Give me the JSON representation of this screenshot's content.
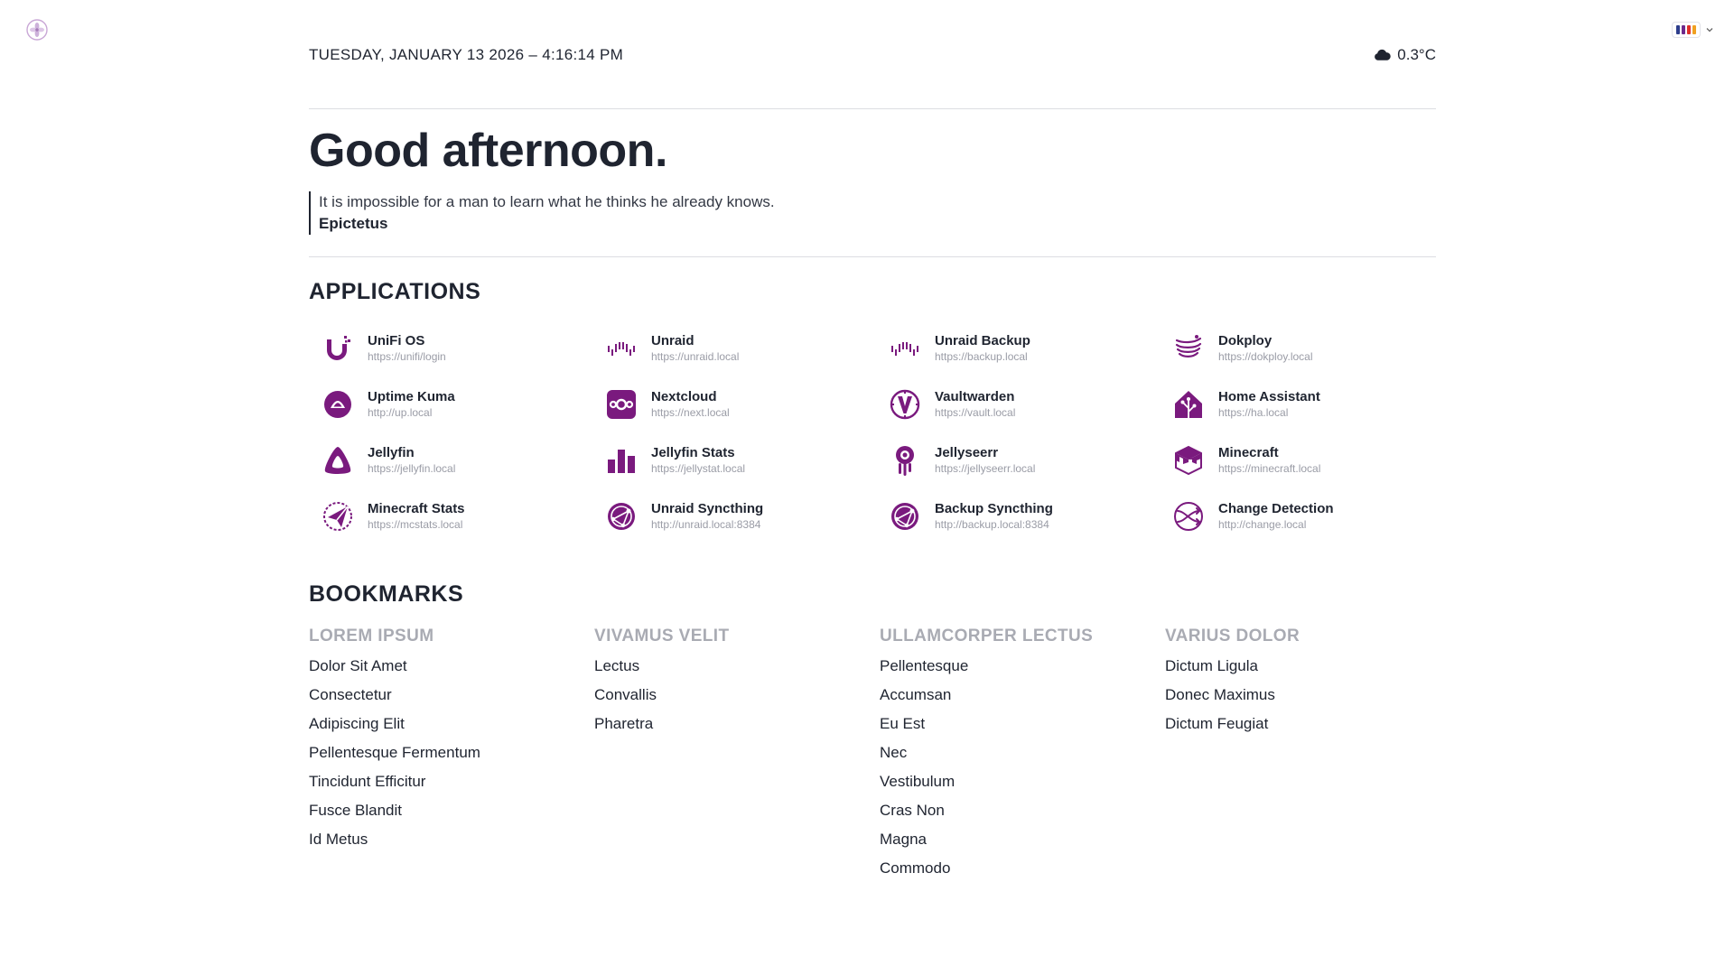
{
  "header": {
    "datetime": "TUESDAY, JANUARY 13 2026 – 4:16:14 PM",
    "weather_icon": "cloud-icon",
    "temperature": "0.3°C"
  },
  "theme": {
    "logo_icon": "flower-logo-icon",
    "swatch_colors": [
      "#2d3e8c",
      "#6e2a8c",
      "#e0302a",
      "#f0a020"
    ],
    "accent": "#7a1a7e"
  },
  "greeting": "Good afternoon.",
  "quote": {
    "text": "It is impossible for a man to learn what he thinks he already knows.",
    "author": "Epictetus"
  },
  "applications": {
    "title": "APPLICATIONS",
    "items": [
      {
        "name": "UniFi OS",
        "url": "https://unifi/login",
        "icon": "unifi-icon"
      },
      {
        "name": "Unraid",
        "url": "https://unraid.local",
        "icon": "unraid-icon"
      },
      {
        "name": "Unraid Backup",
        "url": "https://backup.local",
        "icon": "unraid-icon"
      },
      {
        "name": "Dokploy",
        "url": "https://dokploy.local",
        "icon": "dokploy-icon"
      },
      {
        "name": "Uptime Kuma",
        "url": "http://up.local",
        "icon": "uptime-kuma-icon"
      },
      {
        "name": "Nextcloud",
        "url": "https://next.local",
        "icon": "nextcloud-icon"
      },
      {
        "name": "Vaultwarden",
        "url": "https://vault.local",
        "icon": "vaultwarden-icon"
      },
      {
        "name": "Home Assistant",
        "url": "https://ha.local",
        "icon": "home-assistant-icon"
      },
      {
        "name": "Jellyfin",
        "url": "https://jellyfin.local",
        "icon": "jellyfin-icon"
      },
      {
        "name": "Jellyfin Stats",
        "url": "https://jellystat.local",
        "icon": "jellystat-icon"
      },
      {
        "name": "Jellyseerr",
        "url": "https://jellyseerr.local",
        "icon": "jellyseerr-icon"
      },
      {
        "name": "Minecraft",
        "url": "https://minecraft.local",
        "icon": "minecraft-icon"
      },
      {
        "name": "Minecraft Stats",
        "url": "https://mcstats.local",
        "icon": "minecraft-stats-icon"
      },
      {
        "name": "Unraid Syncthing",
        "url": "http://unraid.local:8384",
        "icon": "syncthing-icon"
      },
      {
        "name": "Backup Syncthing",
        "url": "http://backup.local:8384",
        "icon": "syncthing-icon"
      },
      {
        "name": "Change Detection",
        "url": "http://change.local",
        "icon": "change-detection-icon"
      }
    ]
  },
  "bookmarks": {
    "title": "BOOKMARKS",
    "groups": [
      {
        "title": "LOREM IPSUM",
        "links": [
          "Dolor Sit Amet",
          "Consectetur",
          "Adipiscing Elit",
          "Pellentesque Fermentum",
          "Tincidunt Efficitur",
          "Fusce Blandit",
          "Id Metus"
        ]
      },
      {
        "title": "VIVAMUS VELIT",
        "links": [
          "Lectus",
          "Convallis",
          "Pharetra"
        ]
      },
      {
        "title": "ULLAMCORPER LECTUS",
        "links": [
          "Pellentesque",
          "Accumsan",
          "Eu Est",
          "Nec",
          "Vestibulum",
          "Cras Non",
          "Magna",
          "Commodo"
        ]
      },
      {
        "title": "VARIUS DOLOR",
        "links": [
          "Dictum Ligula",
          "Donec Maximus",
          "Dictum Feugiat"
        ]
      }
    ]
  }
}
